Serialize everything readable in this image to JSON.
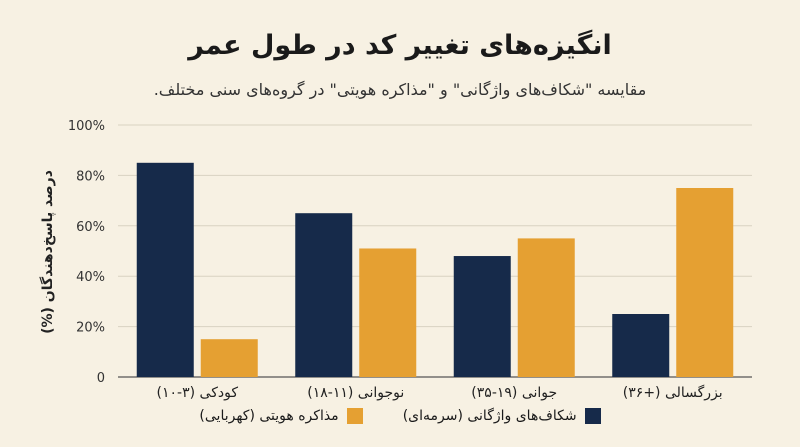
{
  "chart_data": {
    "type": "bar",
    "title": "انگیزه‌های تغییر کد در طول عمر",
    "subtitle": "مقایسه \"شکاف‌های واژگانی\" و \"مذاکره هویتی\" در گروه‌های سنی مختلف.",
    "ylabel": "درصد پاسخ‌دهندگان (%)",
    "xlabel": "",
    "ylim": [
      0,
      100
    ],
    "yticks": [
      0,
      20,
      40,
      60,
      80,
      100
    ],
    "ytick_labels": [
      "0",
      "20%",
      "40%",
      "60%",
      "80%",
      "100%"
    ],
    "categories": [
      "کودکی (۳-۱۰)",
      "نوجوانی (۱۱-۱۸)",
      "جوانی (۱۹-۳۵)",
      "بزرگسالی (+۳۶)"
    ],
    "series": [
      {
        "name": "شکاف‌های واژگانی (سرمه‌ای)",
        "color": "#162a4a",
        "values": [
          85,
          65,
          48,
          25
        ]
      },
      {
        "name": "مذاکره هویتی (کهربایی)",
        "color": "#e5a032",
        "values": [
          15,
          51,
          55,
          75
        ]
      }
    ],
    "grid": true,
    "legend_position": "bottom"
  }
}
